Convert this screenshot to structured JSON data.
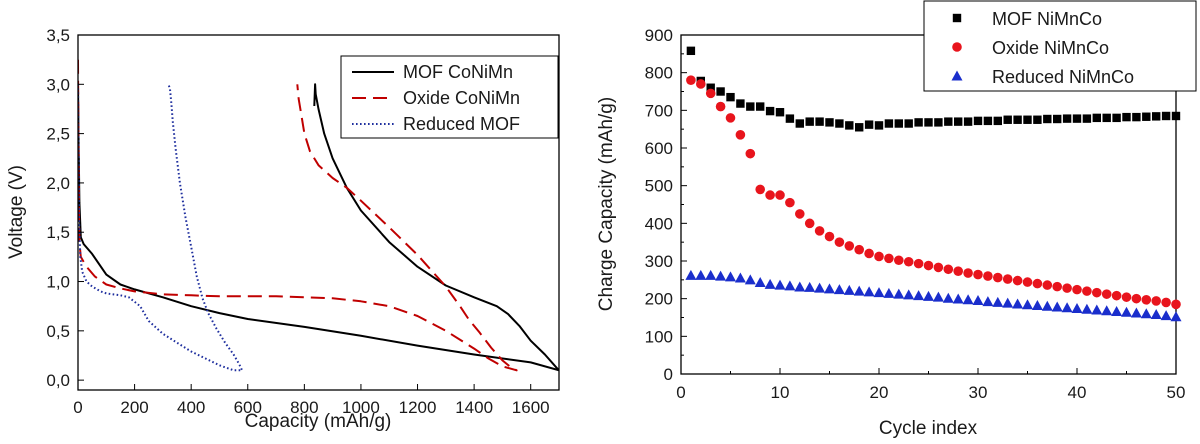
{
  "chart_data": [
    {
      "type": "line",
      "title": "",
      "xlabel": "Capacity (mAh/g)",
      "ylabel": "Voltage (V)",
      "xlim": [
        0,
        1700
      ],
      "ylim": [
        -0.1,
        3.5
      ],
      "x_ticks": [
        0,
        200,
        400,
        600,
        800,
        1000,
        1200,
        1400,
        1600
      ],
      "y_ticks": [
        0.0,
        0.5,
        1.0,
        1.5,
        2.0,
        2.5,
        3.0,
        3.5
      ],
      "x_tick_labels": [
        "0",
        "200",
        "400",
        "600",
        "800",
        "1000",
        "1200",
        "1400",
        "1600"
      ],
      "y_tick_labels": [
        "0,0",
        "0,5",
        "1,0",
        "1,5",
        "2,0",
        "2,5",
        "3,0",
        "3,5"
      ],
      "legend_position": "top-right",
      "series": [
        {
          "name": "MOF CoNiMn",
          "color": "#000000",
          "dash": "solid",
          "x": [
            0,
            2,
            5,
            10,
            20,
            50,
            100,
            150,
            200,
            300,
            400,
            500,
            600,
            800,
            1000,
            1200,
            1400,
            1600,
            1700,
            1690,
            1650,
            1600,
            1560,
            1520,
            1480,
            1400,
            1300,
            1200,
            1100,
            1000,
            950,
            900,
            870,
            850,
            840,
            838,
            835
          ],
          "values": [
            3.0,
            2.4,
            1.8,
            1.45,
            1.38,
            1.28,
            1.07,
            0.97,
            0.92,
            0.84,
            0.75,
            0.68,
            0.62,
            0.54,
            0.45,
            0.35,
            0.26,
            0.18,
            0.1,
            0.13,
            0.26,
            0.4,
            0.55,
            0.67,
            0.75,
            0.84,
            0.96,
            1.15,
            1.4,
            1.72,
            1.95,
            2.25,
            2.5,
            2.75,
            2.9,
            3.0,
            2.78
          ]
        },
        {
          "name": "Oxide CoNiMn",
          "color": "#c00000",
          "dash": "dashed",
          "x": [
            0,
            2,
            5,
            10,
            30,
            60,
            100,
            150,
            200,
            300,
            400,
            500,
            600,
            700,
            800,
            900,
            1000,
            1100,
            1200,
            1300,
            1400,
            1450,
            1500,
            1550,
            1530,
            1500,
            1460,
            1420,
            1380,
            1350,
            1300,
            1200,
            1100,
            1000,
            950,
            900,
            850,
            820,
            800,
            790,
            780,
            775
          ],
          "values": [
            3.25,
            2.0,
            1.4,
            1.25,
            1.15,
            1.05,
            0.97,
            0.93,
            0.9,
            0.87,
            0.86,
            0.85,
            0.85,
            0.85,
            0.84,
            0.83,
            0.8,
            0.75,
            0.65,
            0.5,
            0.32,
            0.22,
            0.14,
            0.1,
            0.13,
            0.2,
            0.33,
            0.48,
            0.62,
            0.75,
            0.95,
            1.27,
            1.55,
            1.82,
            1.95,
            2.05,
            2.18,
            2.32,
            2.5,
            2.68,
            2.85,
            3.0
          ]
        },
        {
          "name": "Reduced MOF",
          "color": "#1f2f9e",
          "dash": "dotted",
          "x": [
            0,
            2,
            4,
            8,
            15,
            30,
            50,
            80,
            100,
            150,
            180,
            220,
            250,
            300,
            350,
            400,
            450,
            500,
            550,
            580,
            570,
            550,
            520,
            490,
            460,
            440,
            420,
            400,
            380,
            360,
            345,
            335,
            330,
            325,
            320
          ],
          "values": [
            3.0,
            2.2,
            1.6,
            1.25,
            1.1,
            1.0,
            0.95,
            0.9,
            0.88,
            0.86,
            0.84,
            0.75,
            0.6,
            0.47,
            0.38,
            0.29,
            0.22,
            0.15,
            0.1,
            0.1,
            0.16,
            0.26,
            0.38,
            0.52,
            0.68,
            0.83,
            1.05,
            1.35,
            1.65,
            2.0,
            2.35,
            2.62,
            2.8,
            2.95,
            3.0
          ]
        }
      ]
    },
    {
      "type": "scatter",
      "title": "",
      "xlabel": "Cycle index",
      "ylabel": "Charge Capacity (mAh/g)",
      "xlim": [
        0,
        50
      ],
      "ylim": [
        0,
        900
      ],
      "x_ticks": [
        0,
        10,
        20,
        30,
        40,
        50
      ],
      "y_ticks": [
        0,
        100,
        200,
        300,
        400,
        500,
        600,
        700,
        800,
        900
      ],
      "x_tick_labels": [
        "0",
        "10",
        "20",
        "30",
        "40",
        "50"
      ],
      "y_tick_labels": [
        "0",
        "100",
        "200",
        "300",
        "400",
        "500",
        "600",
        "700",
        "800",
        "900"
      ],
      "legend_position": "top-left",
      "x": [
        1,
        2,
        3,
        4,
        5,
        6,
        7,
        8,
        9,
        10,
        11,
        12,
        13,
        14,
        15,
        16,
        17,
        18,
        19,
        20,
        21,
        22,
        23,
        24,
        25,
        26,
        27,
        28,
        29,
        30,
        31,
        32,
        33,
        34,
        35,
        36,
        37,
        38,
        39,
        40,
        41,
        42,
        43,
        44,
        45,
        46,
        47,
        48,
        49,
        50
      ],
      "series": [
        {
          "name": "MOF NiMnCo",
          "color": "#000000",
          "marker": "square",
          "values": [
            858,
            778,
            760,
            750,
            735,
            718,
            710,
            710,
            698,
            695,
            678,
            665,
            670,
            670,
            668,
            665,
            660,
            655,
            662,
            660,
            665,
            665,
            665,
            668,
            668,
            668,
            670,
            670,
            670,
            672,
            672,
            672,
            675,
            675,
            675,
            675,
            677,
            677,
            678,
            678,
            678,
            680,
            680,
            680,
            682,
            682,
            683,
            684,
            685,
            685
          ]
        },
        {
          "name": "Oxide NiMnCo",
          "color": "#e8141c",
          "marker": "circle",
          "values": [
            780,
            770,
            745,
            710,
            680,
            635,
            585,
            490,
            475,
            475,
            455,
            425,
            400,
            380,
            365,
            350,
            340,
            330,
            320,
            312,
            307,
            302,
            298,
            293,
            288,
            283,
            278,
            273,
            268,
            264,
            260,
            256,
            252,
            248,
            244,
            240,
            236,
            232,
            228,
            224,
            220,
            216,
            212,
            208,
            204,
            200,
            197,
            194,
            190,
            185
          ]
        },
        {
          "name": "Reduced NiMnCo",
          "color": "#1a2ecc",
          "marker": "triangle",
          "values": [
            262,
            262,
            262,
            260,
            258,
            255,
            250,
            243,
            238,
            236,
            234,
            231,
            230,
            228,
            226,
            224,
            222,
            220,
            218,
            216,
            214,
            212,
            210,
            208,
            206,
            204,
            201,
            199,
            197,
            195,
            192,
            190,
            188,
            186,
            184,
            182,
            180,
            178,
            176,
            174,
            172,
            170,
            168,
            166,
            164,
            162,
            160,
            158,
            155,
            152
          ]
        }
      ]
    }
  ]
}
